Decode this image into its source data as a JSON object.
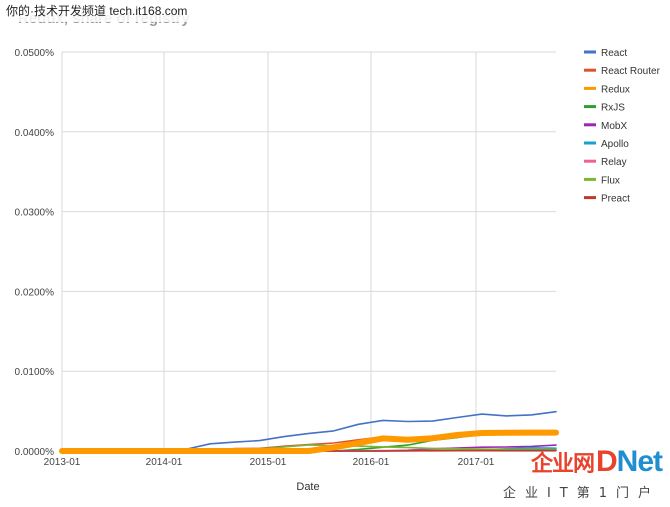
{
  "watermark": {
    "top_text": "你的·技术开发频道 tech.it168.com",
    "logo_cn": "企业网",
    "logo_d": "D",
    "logo_net": "Net",
    "logo_sub": "企业IT第1门户"
  },
  "chart_data": {
    "type": "line",
    "title": "Redux, share of registry",
    "xlabel": "Date",
    "ylabel": "",
    "x": [
      "2013-01",
      "2013-04",
      "2013-07",
      "2013-10",
      "2014-01",
      "2014-04",
      "2014-07",
      "2014-10",
      "2015-01",
      "2015-04",
      "2015-07",
      "2015-10",
      "2016-01",
      "2016-04",
      "2016-07",
      "2016-10",
      "2017-01",
      "2017-04",
      "2017-07",
      "2017-09",
      "2017-10"
    ],
    "x_ticks": [
      "2013-01",
      "2014-01",
      "2015-01",
      "2016-01",
      "2017-01"
    ],
    "y_ticks": [
      "0.0000%",
      "0.0100%",
      "0.0200%",
      "0.0300%",
      "0.0400%",
      "0.0500%"
    ],
    "ylim": [
      0,
      0.05
    ],
    "grid": true,
    "legend_position": "right",
    "series": [
      {
        "name": "React",
        "color": "#4472c4",
        "values": [
          0,
          0,
          0,
          0,
          0.0001,
          0.0002,
          0.0009,
          0.00112,
          0.0013,
          0.0018,
          0.0022,
          0.00252,
          0.00335,
          0.00384,
          0.0037,
          0.00375,
          0.0042,
          0.00463,
          0.0044,
          0.00452,
          0.00493
        ]
      },
      {
        "name": "React Router",
        "color": "#e0522f",
        "values": [
          0,
          0,
          0,
          0,
          0,
          0,
          0,
          0.0003,
          0.00033,
          0.0006,
          0.0008,
          0.001,
          0.0014,
          0.00178,
          0.00162,
          0.00164,
          0.0019,
          0.00214,
          0.00212,
          0.00218,
          0.00226
        ]
      },
      {
        "name": "Redux",
        "color": "#ff9900",
        "values": [
          0,
          0,
          0,
          0,
          0,
          0,
          0,
          0,
          0,
          0,
          0,
          0.00045,
          0.001,
          0.00158,
          0.0014,
          0.0016,
          0.002,
          0.00225,
          0.00228,
          0.0023,
          0.00231
        ]
      },
      {
        "name": "RxJS",
        "color": "#2ca02c",
        "values": [
          0,
          0,
          0,
          0,
          0,
          0,
          0,
          0,
          0,
          0,
          0,
          0,
          0.0002,
          0.00048,
          0.00074,
          0.00134,
          0.00168,
          0.0021,
          0.00228,
          0.0023,
          0.00242
        ]
      },
      {
        "name": "MobX",
        "color": "#9c27b0",
        "values": [
          0,
          0,
          0,
          0,
          0,
          0,
          0,
          0,
          0,
          0,
          0,
          0,
          0,
          0,
          0.0001,
          0.00028,
          0.00038,
          0.00047,
          0.0005,
          0.00058,
          0.00074
        ]
      },
      {
        "name": "Apollo",
        "color": "#17a2c9",
        "values": [
          0,
          0,
          0,
          0,
          0,
          0,
          0,
          0,
          0,
          0,
          0,
          0,
          0,
          0,
          3e-05,
          5e-05,
          8e-05,
          0.00015,
          0.00028,
          0.0004,
          0.00035
        ]
      },
      {
        "name": "Relay",
        "color": "#f06292",
        "values": [
          0,
          0,
          0,
          0,
          0,
          0,
          0,
          0,
          0,
          0,
          0,
          0,
          3e-05,
          5e-05,
          8e-05,
          7e-05,
          6e-05,
          8e-05,
          0.0001,
          0.0001,
          0.0001
        ]
      },
      {
        "name": "Flux",
        "color": "#7cb82f",
        "values": [
          0,
          0,
          0,
          0,
          0,
          0,
          0,
          0.00023,
          0.00026,
          0.0005,
          0.00075,
          0.00065,
          0.00062,
          0.00052,
          0.00043,
          0.00032,
          0.00028,
          0.00025,
          0.00021,
          0.0002,
          0.00019
        ]
      },
      {
        "name": "Preact",
        "color": "#c0392b",
        "values": [
          0,
          0,
          0,
          0,
          0,
          0,
          0,
          0,
          0,
          0,
          0,
          0,
          0,
          0,
          2e-05,
          3e-05,
          4e-05,
          5e-05,
          6e-05,
          7e-05,
          8e-05
        ]
      }
    ],
    "highlight_series": "Redux"
  }
}
